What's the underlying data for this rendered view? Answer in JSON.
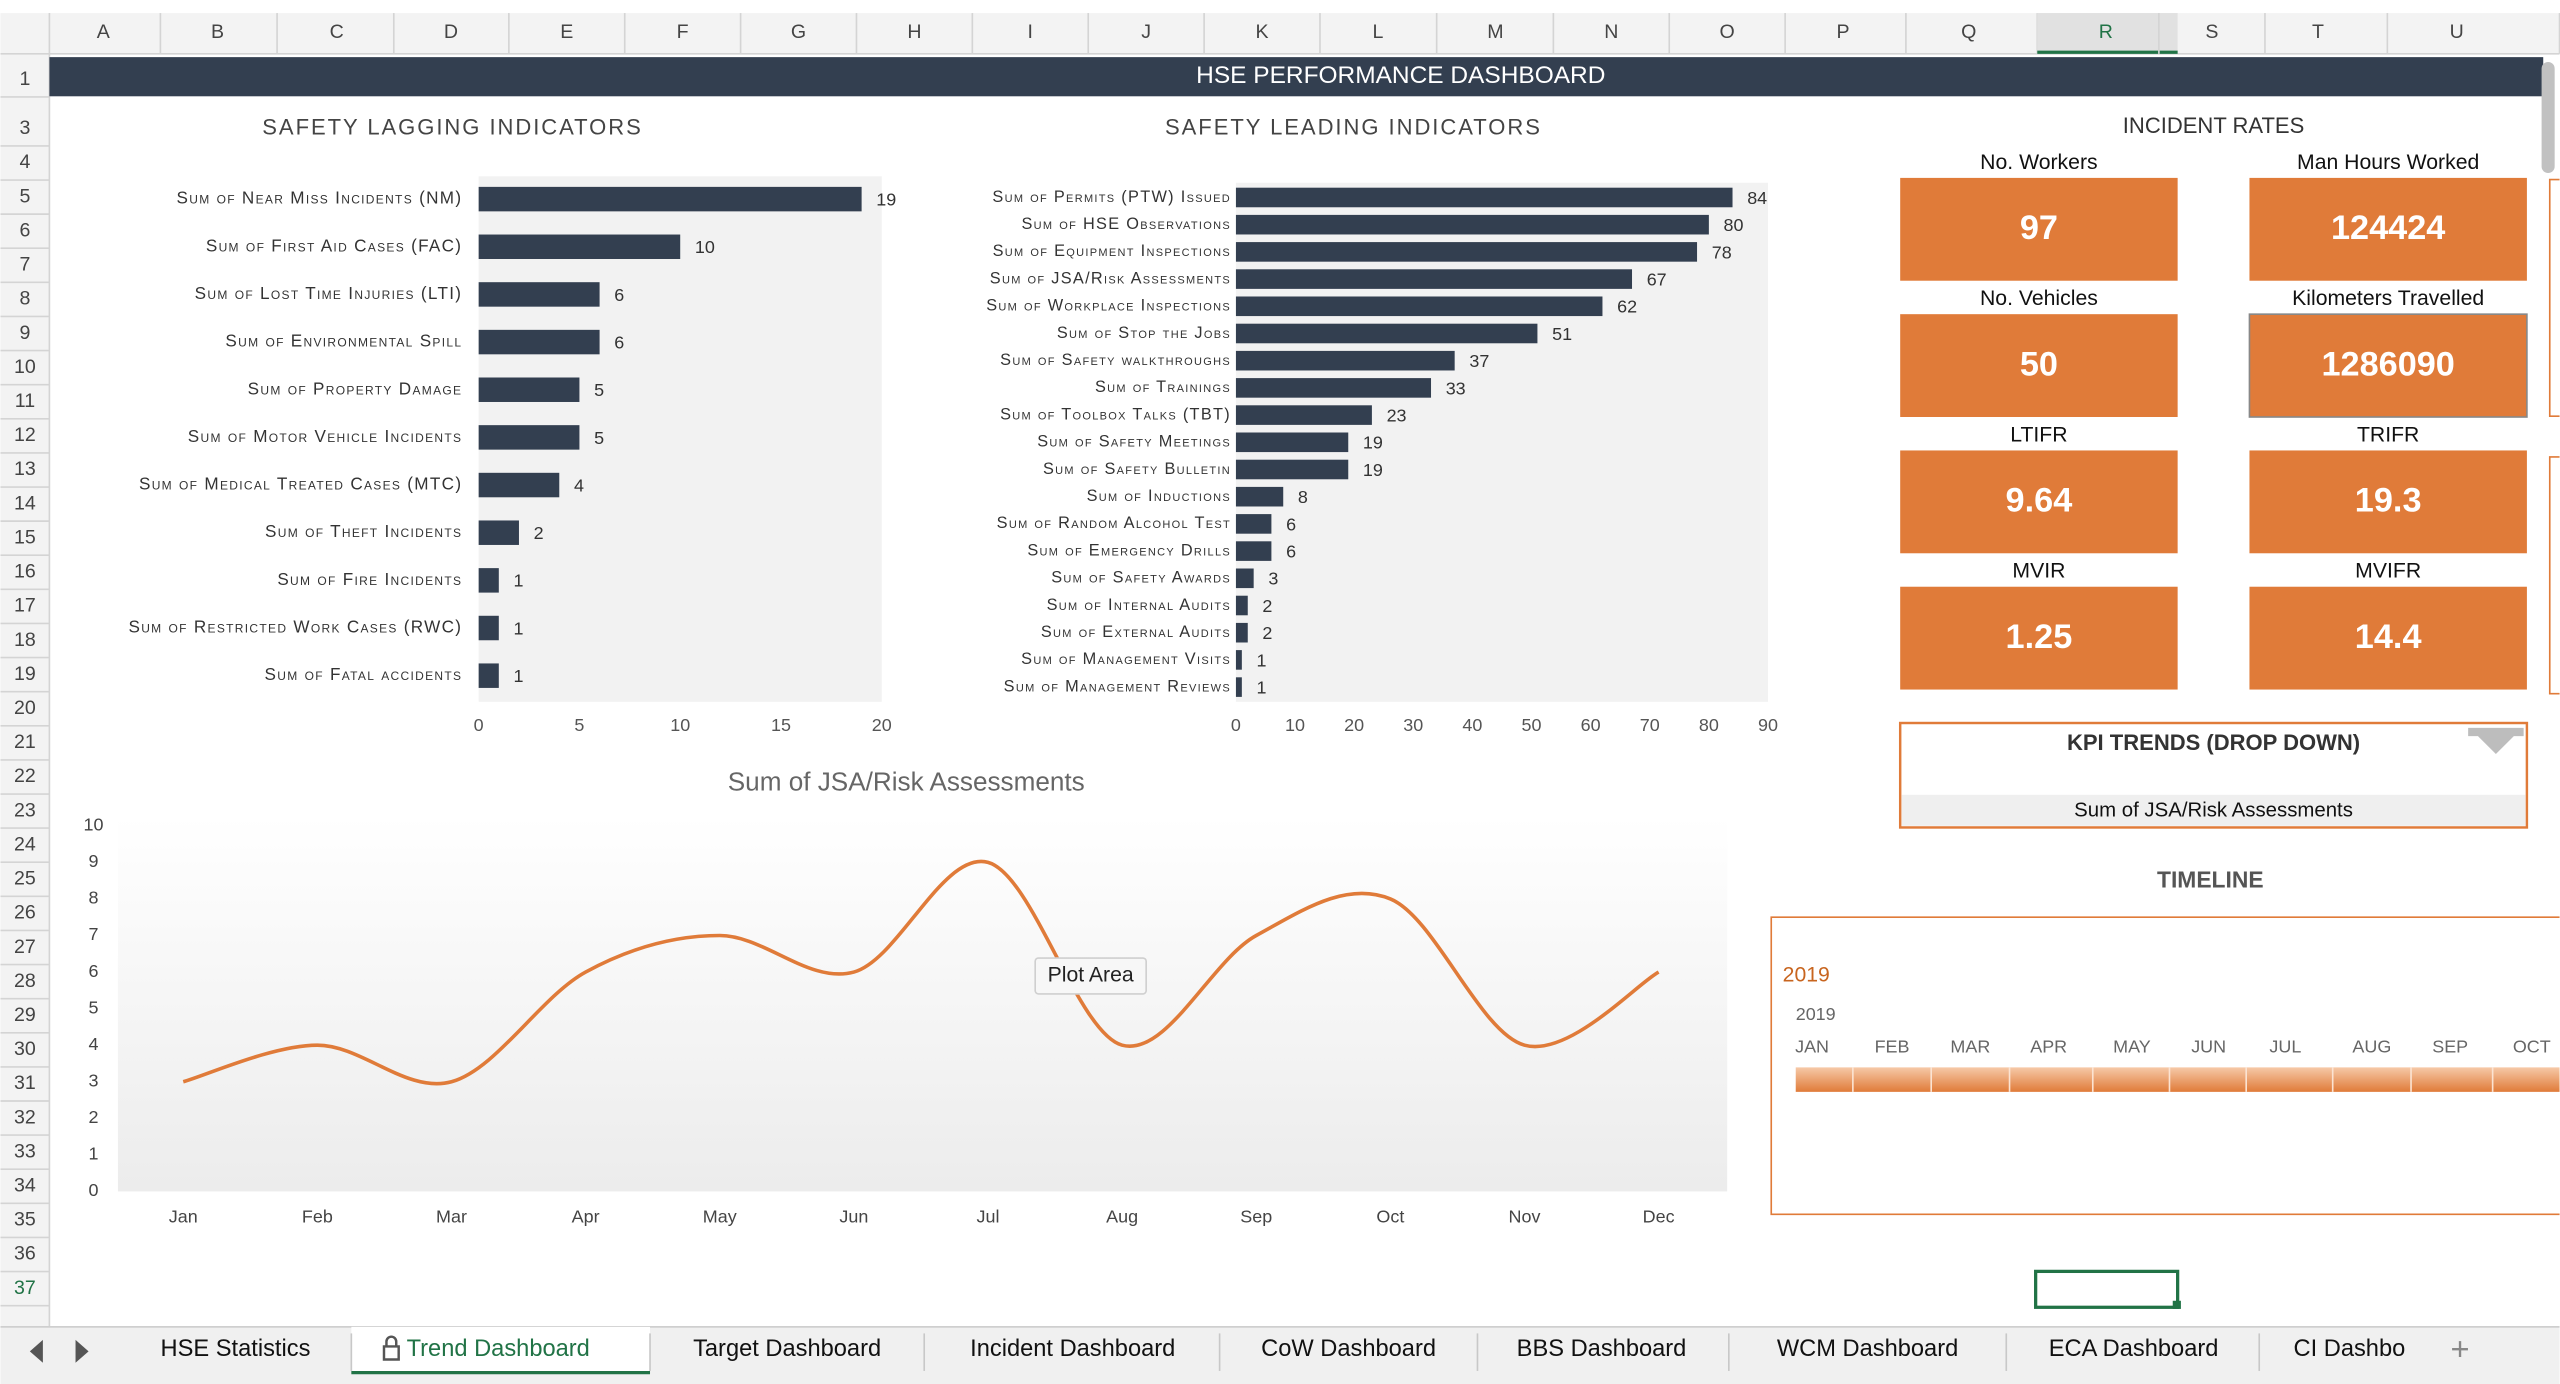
{
  "sheet": {
    "columns": [
      "A",
      "B",
      "C",
      "D",
      "E",
      "F",
      "G",
      "H",
      "I",
      "J",
      "K",
      "L",
      "M",
      "N",
      "O",
      "P",
      "Q",
      "R",
      "S",
      "T",
      "U"
    ],
    "rows": [
      1,
      3,
      4,
      5,
      6,
      7,
      8,
      9,
      10,
      11,
      12,
      13,
      14,
      15,
      16,
      17,
      18,
      19,
      20,
      21,
      22,
      23,
      24,
      25,
      26,
      27,
      28,
      29,
      30,
      31,
      32,
      33,
      34,
      35,
      36,
      37
    ],
    "tabs": [
      "HSE Statistics",
      "Trend Dashboard",
      "Target Dashboard",
      "Incident Dashboard",
      "CoW Dashboard",
      "BBS Dashboard",
      "WCM Dashboard",
      "ECA Dashboard",
      "CI Dashbo"
    ],
    "active_tab": 1
  },
  "dashboard_title": "HSE PERFORMANCE DASHBOARD",
  "chart_data": [
    {
      "type": "hbar",
      "title": "SAFETY LAGGING INDICATORS",
      "color": "#333f50",
      "categories": [
        "Sum of Near Miss Incidents (NM)",
        "Sum of First Aid Cases (FAC)",
        "Sum of Lost Time Injuries (LTI)",
        "Sum of Environmental Spill",
        "Sum of Property Damage",
        "Sum of Motor Vehicle Incidents",
        "Sum of Medical Treated Cases (MTC)",
        "Sum of Theft Incidents",
        "Sum of Fire Incidents",
        "Sum of Restricted Work Cases (RWC)",
        "Sum of Fatal accidents"
      ],
      "values": [
        19,
        10,
        6,
        6,
        5,
        5,
        4,
        2,
        1,
        1,
        1
      ],
      "xlim": [
        0,
        20
      ],
      "xticks": [
        0,
        5,
        10,
        15,
        20
      ]
    },
    {
      "type": "hbar",
      "title": "SAFETY LEADING INDICATORS",
      "color": "#333f50",
      "categories": [
        "Sum of Permits (PTW) Issued",
        "Sum of HSE Observations",
        "Sum of Equipment Inspections",
        "Sum of JSA/Risk Assessments",
        "Sum of Workplace Inspections",
        "Sum of Stop the Jobs",
        "Sum of Safety walkthroughs",
        "Sum of Trainings",
        "Sum of Toolbox Talks (TBT)",
        "Sum of Safety Meetings",
        "Sum of Safety Bulletin",
        "Sum of Inductions",
        "Sum of Random Alcohol Test",
        "Sum of Emergency Drills",
        "Sum of Safety Awards",
        "Sum of Internal Audits",
        "Sum of External Audits",
        "Sum of Management Visits",
        "Sum of Management Reviews"
      ],
      "values": [
        84,
        80,
        78,
        67,
        62,
        51,
        37,
        33,
        23,
        19,
        19,
        8,
        6,
        6,
        3,
        2,
        2,
        1,
        1
      ],
      "xlim": [
        0,
        90
      ],
      "xticks": [
        0,
        10,
        20,
        30,
        40,
        50,
        60,
        70,
        80,
        90
      ]
    },
    {
      "type": "line",
      "title": "Sum of JSA/Risk Assessments",
      "color": "#e07b39",
      "categories": [
        "Jan",
        "Feb",
        "Mar",
        "Apr",
        "May",
        "Jun",
        "Jul",
        "Aug",
        "Sep",
        "Oct",
        "Nov",
        "Dec"
      ],
      "values": [
        3,
        4,
        3,
        6,
        7,
        6,
        9,
        4,
        7,
        8,
        4,
        6
      ],
      "ylim": [
        0,
        10
      ],
      "yticks": [
        0,
        1,
        2,
        3,
        4,
        5,
        6,
        7,
        8,
        9,
        10
      ]
    }
  ],
  "tooltip": "Plot Area",
  "incident_rates": {
    "title": "INCIDENT RATES",
    "cards": [
      {
        "label": "No. Workers",
        "value": 97
      },
      {
        "label": "Man Hours Worked",
        "value": 124424
      },
      {
        "label": "No. Vehicles",
        "value": 50
      },
      {
        "label": "Kilometers Travelled",
        "value": 1286090
      },
      {
        "label": "LTIFR",
        "value": 9.64
      },
      {
        "label": "TRIFR",
        "value": 19.3
      },
      {
        "label": "MVIR",
        "value": 1.25
      },
      {
        "label": "MVIFR",
        "value": 14.4
      }
    ]
  },
  "kpi_trends": {
    "title": "KPI TRENDS (DROP DOWN)",
    "selected": "Sum of JSA/Risk Assessments"
  },
  "timeline": {
    "title": "TIMELINE",
    "selected": "2019",
    "year": "2019",
    "months": [
      "JAN",
      "FEB",
      "MAR",
      "APR",
      "MAY",
      "JUN",
      "JUL",
      "AUG",
      "SEP",
      "OCT"
    ]
  }
}
